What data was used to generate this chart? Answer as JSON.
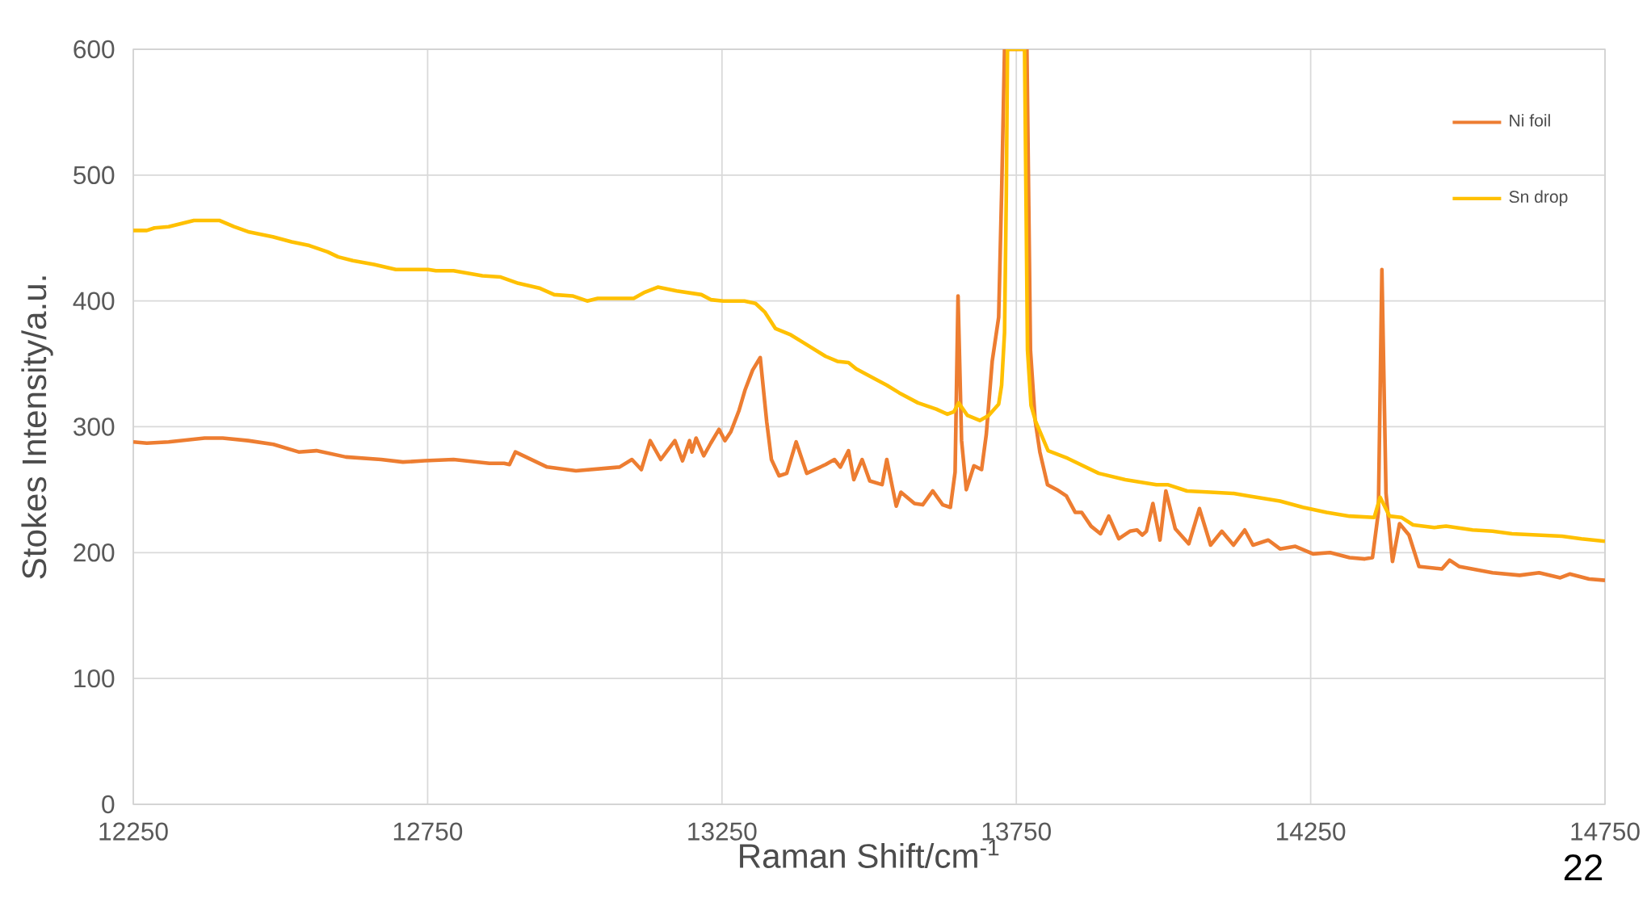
{
  "chart_data": {
    "type": "line",
    "xlabel": "Raman Shift/cm$^{-1}$",
    "ylabel": "Stokes Intensity/a.u.",
    "xlim": [
      12250,
      14750
    ],
    "ylim": [
      0,
      600
    ],
    "xticks": [
      12250,
      12750,
      13250,
      13750,
      14250,
      14750
    ],
    "yticks": [
      0,
      100,
      200,
      300,
      400,
      500,
      600
    ],
    "grid": true,
    "legend": "top right",
    "marker": "none",
    "line_style": "solid",
    "annotations": [
      "22"
    ],
    "series": [
      {
        "name": "Ni foil",
        "color": "#ed7d31",
        "x": [
          12250,
          12273,
          12310,
          12371,
          12402,
          12445,
          12488,
          12531,
          12561,
          12611,
          12671,
          12708,
          12745,
          12794,
          12855,
          12880,
          12889,
          12899,
          12953,
          13002,
          13076,
          13097,
          13113,
          13128,
          13146,
          13170,
          13183,
          13195,
          13199,
          13206,
          13219,
          13231,
          13245,
          13255,
          13265,
          13279,
          13289,
          13302,
          13315,
          13326,
          13334,
          13347,
          13360,
          13376,
          13394,
          13426,
          13441,
          13451,
          13465,
          13474,
          13488,
          13501,
          13522,
          13530,
          13546,
          13554,
          13577,
          13591,
          13608,
          13625,
          13638,
          13646,
          13651,
          13657,
          13665,
          13678,
          13691,
          13699,
          13709,
          13720,
          13725,
          13730,
          13768,
          13774,
          13782,
          13790,
          13803,
          13819,
          13835,
          13850,
          13861,
          13877,
          13893,
          13907,
          13924,
          13943,
          13955,
          13964,
          13971,
          13982,
          13994,
          14004,
          14020,
          14043,
          14061,
          14080,
          14099,
          14119,
          14138,
          14152,
          14178,
          14198,
          14224,
          14254,
          14283,
          14316,
          14342,
          14355,
          14365,
          14371,
          14378,
          14389,
          14401,
          14417,
          14434,
          14473,
          14486,
          14502,
          14559,
          14605,
          14638,
          14674,
          14690,
          14723,
          14750
        ],
        "values": [
          288,
          287,
          288,
          291,
          291,
          289,
          286,
          280,
          281,
          276,
          274,
          272,
          273,
          274,
          271,
          271,
          270,
          280,
          268,
          265,
          268,
          274,
          266,
          289,
          274,
          289,
          273,
          289,
          280,
          291,
          277,
          287,
          298,
          289,
          296,
          313,
          329,
          345,
          355,
          304,
          274,
          261,
          263,
          288,
          263,
          270,
          274,
          268,
          281,
          258,
          274,
          257,
          254,
          274,
          237,
          248,
          239,
          238,
          249,
          238,
          236,
          264,
          404,
          289,
          250,
          269,
          266,
          294,
          352,
          387,
          485,
          600,
          600,
          361,
          305,
          280,
          254,
          250,
          245,
          232,
          232,
          221,
          215,
          229,
          211,
          217,
          218,
          214,
          217,
          239,
          210,
          249,
          219,
          207,
          235,
          206,
          217,
          206,
          218,
          206,
          210,
          203,
          205,
          199,
          200,
          196,
          195,
          196,
          232,
          425,
          247,
          193,
          223,
          214,
          189,
          187,
          194,
          189,
          184,
          182,
          184,
          180,
          183,
          179,
          178
        ]
      },
      {
        "name": "Sn drop",
        "color": "#ffc000",
        "x": [
          12250,
          12273,
          12286,
          12310,
          12353,
          12396,
          12421,
          12445,
          12487,
          12519,
          12549,
          12580,
          12598,
          12623,
          12659,
          12696,
          12751,
          12764,
          12794,
          12843,
          12874,
          12904,
          12941,
          12965,
          12996,
          13021,
          13039,
          13100,
          13119,
          13141,
          13173,
          13215,
          13231,
          13252,
          13288,
          13307,
          13323,
          13341,
          13367,
          13388,
          13426,
          13446,
          13465,
          13478,
          13510,
          13530,
          13551,
          13583,
          13614,
          13633,
          13644,
          13652,
          13667,
          13688,
          13703,
          13720,
          13725,
          13730,
          13733,
          13735,
          13764,
          13769,
          13775,
          13783,
          13804,
          13837,
          13890,
          13935,
          13988,
          14007,
          14040,
          14080,
          14119,
          14145,
          14198,
          14237,
          14277,
          14316,
          14358,
          14368,
          14384,
          14404,
          14424,
          14460,
          14480,
          14525,
          14559,
          14592,
          14677,
          14710,
          14750
        ],
        "values": [
          456,
          456,
          458,
          459,
          464,
          464,
          459,
          455,
          451,
          447,
          444,
          439,
          435,
          432,
          429,
          425,
          425,
          424,
          424,
          420,
          419,
          414,
          410,
          405,
          404,
          400,
          402,
          402,
          407,
          411,
          408,
          405,
          401,
          400,
          400,
          398,
          391,
          378,
          373,
          367,
          356,
          352,
          351,
          346,
          338,
          333,
          327,
          319,
          314,
          310,
          312,
          319,
          309,
          305,
          309,
          318,
          333,
          375,
          485,
          600,
          600,
          361,
          317,
          304,
          281,
          275,
          263,
          258,
          254,
          254,
          249,
          248,
          247,
          245,
          241,
          236,
          232,
          229,
          228,
          244,
          229,
          228,
          222,
          220,
          221,
          218,
          217,
          215,
          213,
          211,
          209
        ]
      }
    ]
  }
}
